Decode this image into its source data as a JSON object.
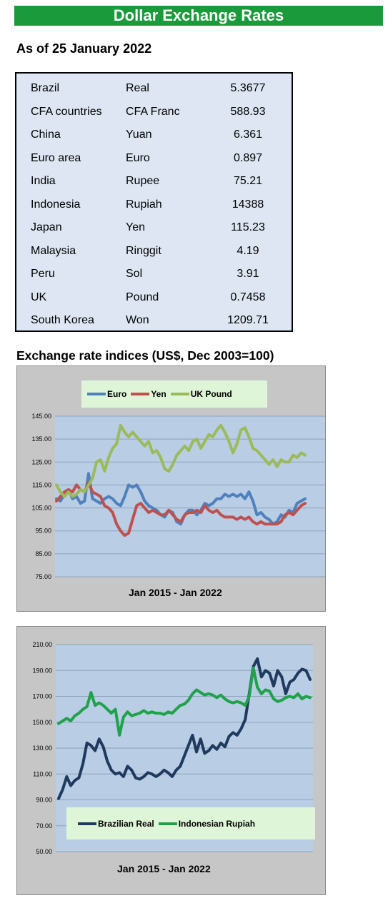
{
  "header": {
    "title": "Dollar Exchange Rates",
    "as_of": "As of 25 January 2022"
  },
  "rates": [
    {
      "country": "Brazil",
      "currency": "Real",
      "value": "5.3677"
    },
    {
      "country": "CFA countries",
      "currency": "CFA Franc",
      "value": "588.93"
    },
    {
      "country": "China",
      "currency": "Yuan",
      "value": "6.361"
    },
    {
      "country": "Euro area",
      "currency": "Euro",
      "value": "0.897"
    },
    {
      "country": "India",
      "currency": "Rupee",
      "value": "75.21"
    },
    {
      "country": "Indonesia",
      "currency": "Rupiah",
      "value": "14388"
    },
    {
      "country": "Japan",
      "currency": "Yen",
      "value": "115.23"
    },
    {
      "country": "Malaysia",
      "currency": "Ringgit",
      "value": "4.19"
    },
    {
      "country": "Peru",
      "currency": "Sol",
      "value": "3.91"
    },
    {
      "country": "UK",
      "currency": "Pound",
      "value": "0.7458"
    },
    {
      "country": "South Korea",
      "currency": "Won",
      "value": "1209.71"
    }
  ],
  "section_title": "Exchange rate indices (US$, Dec 2003=100)",
  "chart_data": [
    {
      "type": "line",
      "xlabel": "Jan 2015 - Jan 2022",
      "ylim": [
        75,
        145
      ],
      "yticks": [
        "75.00",
        "85.00",
        "95.00",
        "105.00",
        "115.00",
        "125.00",
        "135.00",
        "145.00"
      ],
      "legend_position": "top",
      "series": [
        {
          "name": "Euro",
          "color": "#4f81bd",
          "values": [
            109,
            108,
            111,
            113,
            109,
            110,
            107,
            108,
            120,
            109,
            108,
            107,
            109,
            110,
            109,
            107,
            106,
            110,
            115,
            114,
            115,
            112,
            108,
            106,
            105,
            104,
            102,
            101,
            104,
            103,
            99,
            98,
            102,
            104,
            104,
            102,
            104,
            107,
            106,
            107,
            109,
            109,
            111,
            110,
            111,
            110,
            111,
            109,
            112,
            108,
            102,
            103,
            101,
            100,
            98,
            99,
            102,
            101,
            104,
            103,
            107,
            108,
            109
          ]
        },
        {
          "name": "Yen",
          "color": "#c0504d",
          "values": [
            108,
            110,
            112,
            113,
            112,
            115,
            113,
            112,
            116,
            112,
            111,
            110,
            106,
            105,
            103,
            98,
            95,
            93,
            94,
            100,
            106,
            107,
            105,
            103,
            104,
            103,
            102,
            102,
            104,
            102,
            100,
            99,
            102,
            103,
            103,
            104,
            103,
            106,
            104,
            103,
            104,
            102,
            101,
            101,
            101,
            100,
            101,
            100,
            101,
            99,
            98,
            99,
            98,
            98,
            98,
            98,
            99,
            102,
            103,
            102,
            104,
            106,
            107
          ]
        },
        {
          "name": "UK Pound",
          "color": "#9bbb59",
          "values": [
            115,
            112,
            110,
            112,
            110,
            111,
            113,
            112,
            115,
            118,
            125,
            126,
            121,
            127,
            131,
            133,
            141,
            138,
            136,
            138,
            136,
            134,
            132,
            134,
            129,
            130,
            127,
            122,
            121,
            124,
            128,
            130,
            132,
            130,
            134,
            135,
            131,
            134,
            137,
            136,
            139,
            141,
            138,
            134,
            129,
            133,
            139,
            140,
            136,
            131,
            130,
            128,
            126,
            124,
            126,
            123,
            126,
            125,
            125,
            128,
            127,
            129,
            128
          ]
        }
      ]
    },
    {
      "type": "line",
      "xlabel": "Jan 2015 - Jan 2022",
      "ylim": [
        50,
        210
      ],
      "yticks": [
        "50.00",
        "70.00",
        "90.00",
        "110.00",
        "130.00",
        "150.00",
        "170.00",
        "190.00",
        "210.00"
      ],
      "legend_position": "bottom",
      "series": [
        {
          "name": "Brazilian Real",
          "color": "#1f3a5f",
          "values": [
            91,
            98,
            108,
            101,
            105,
            107,
            118,
            134,
            132,
            128,
            137,
            131,
            120,
            113,
            110,
            111,
            108,
            116,
            113,
            107,
            106,
            108,
            111,
            110,
            108,
            110,
            113,
            111,
            108,
            113,
            116,
            124,
            132,
            140,
            127,
            137,
            126,
            128,
            132,
            129,
            134,
            131,
            139,
            142,
            140,
            145,
            152,
            172,
            193,
            199,
            185,
            190,
            188,
            178,
            190,
            185,
            172,
            181,
            183,
            188,
            191,
            190,
            183
          ]
        },
        {
          "name": "Indonesian Rupiah",
          "color": "#1fa24a",
          "values": [
            149,
            151,
            153,
            151,
            155,
            157,
            160,
            162,
            173,
            163,
            165,
            163,
            160,
            157,
            160,
            140,
            154,
            158,
            155,
            156,
            157,
            159,
            157,
            158,
            157,
            157,
            156,
            158,
            157,
            160,
            163,
            164,
            167,
            172,
            175,
            173,
            171,
            172,
            171,
            169,
            171,
            168,
            166,
            165,
            166,
            165,
            163,
            170,
            192,
            177,
            172,
            175,
            174,
            168,
            166,
            167,
            169,
            170,
            169,
            172,
            168,
            170,
            169
          ]
        }
      ]
    }
  ]
}
